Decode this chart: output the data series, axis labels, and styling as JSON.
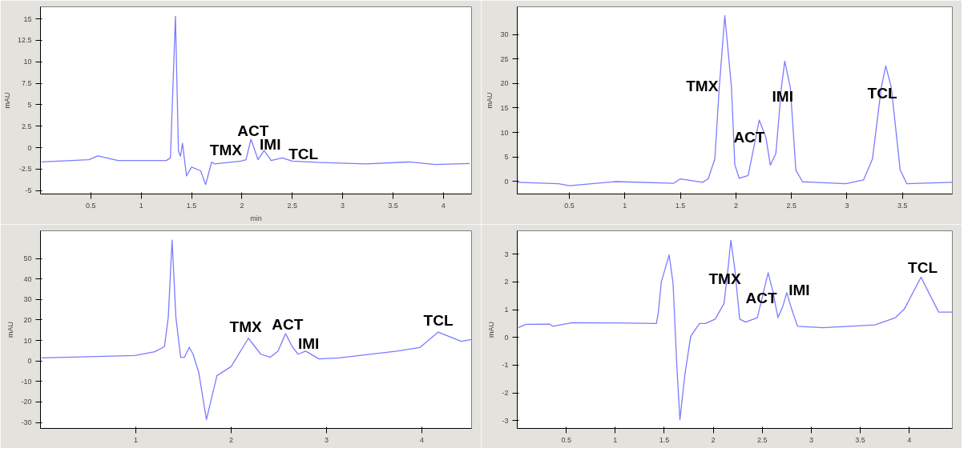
{
  "chart_data": [
    {
      "type": "line",
      "ylabel": "mAU",
      "xlabel": "min",
      "grid": false,
      "xlim": [
        0,
        4.28
      ],
      "ylim": [
        -5.4,
        16.4
      ],
      "xticks": [
        0.5,
        1,
        1.5,
        2,
        2.5,
        3,
        3.5,
        4
      ],
      "yticks": [
        -5,
        -2.5,
        0,
        2.5,
        5,
        7.5,
        10,
        12.5,
        15
      ],
      "series": [
        {
          "color": "#7b7bff",
          "x": [
            0.01,
            0.48,
            0.57,
            0.77,
            1.25,
            1.29,
            1.34,
            1.37,
            1.39,
            1.41,
            1.45,
            1.5,
            1.59,
            1.64,
            1.7,
            1.73,
            1.99,
            2.04,
            2.09,
            2.16,
            2.22,
            2.29,
            2.4,
            2.5,
            2.78,
            3.23,
            3.66,
            3.92,
            4.26
          ],
          "values": [
            -1.67,
            -1.4,
            -0.97,
            -1.5,
            -1.5,
            -1.2,
            15.3,
            -0.4,
            -1.0,
            0.5,
            -3.3,
            -2.27,
            -2.7,
            -4.3,
            -1.67,
            -1.9,
            -1.57,
            -1.4,
            0.96,
            -1.4,
            -0.34,
            -1.5,
            -1.2,
            -1.57,
            -1.74,
            -1.9,
            -1.67,
            -1.97,
            -1.85
          ]
        }
      ],
      "annotations": [
        "TMX",
        "ACT",
        "IMI",
        "TCL"
      ]
    },
    {
      "type": "line",
      "ylabel": "mAU",
      "grid": false,
      "xlim": [
        0.03,
        3.95
      ],
      "ylim": [
        -2.6,
        35.7
      ],
      "xticks": [
        0.5,
        1,
        1.5,
        2,
        2.5,
        3,
        3.5
      ],
      "yticks": [
        0,
        5,
        10,
        15,
        20,
        25,
        30
      ],
      "series": [
        {
          "color": "#7b7bff",
          "x": [
            0.03,
            0.4,
            0.5,
            0.92,
            1.44,
            1.5,
            1.7,
            1.75,
            1.81,
            1.85,
            1.9,
            1.96,
            1.99,
            2.03,
            2.11,
            2.16,
            2.21,
            2.27,
            2.31,
            2.36,
            2.41,
            2.44,
            2.49,
            2.54,
            2.6,
            2.99,
            3.15,
            3.23,
            3.31,
            3.35,
            3.4,
            3.48,
            3.54,
            3.95
          ],
          "values": [
            -0.22,
            -0.5,
            -0.9,
            -0.06,
            -0.4,
            0.5,
            -0.2,
            0.5,
            4.55,
            19.2,
            33.9,
            19.2,
            3.4,
            0.6,
            1.2,
            6.8,
            12.5,
            9.0,
            3.3,
            5.7,
            19.2,
            24.6,
            19.2,
            2.3,
            -0.1,
            -0.5,
            0.3,
            4.55,
            19.2,
            23.6,
            19.2,
            2.3,
            -0.5,
            -0.2
          ]
        }
      ],
      "annotations": [
        "TMX",
        "ACT",
        "IMI",
        "TCL"
      ]
    },
    {
      "type": "line",
      "ylabel": "mAU",
      "grid": false,
      "xlim": [
        0,
        4.52
      ],
      "ylim": [
        -32.9,
        63.5
      ],
      "xticks": [
        1,
        2,
        3,
        4
      ],
      "yticks": [
        -30,
        -20,
        -10,
        0,
        10,
        20,
        30,
        40,
        50
      ],
      "series": [
        {
          "color": "#7b7bff",
          "x": [
            0.01,
            0.99,
            1.2,
            1.3,
            1.34,
            1.38,
            1.42,
            1.47,
            1.51,
            1.56,
            1.6,
            1.66,
            1.74,
            1.85,
            2.0,
            2.18,
            2.31,
            2.41,
            2.49,
            2.57,
            2.64,
            2.7,
            2.78,
            2.92,
            3.13,
            3.74,
            3.98,
            4.17,
            4.41,
            4.52
          ],
          "values": [
            1.5,
            2.7,
            4.5,
            7.0,
            21.3,
            59,
            21.3,
            1.8,
            1.8,
            6.7,
            3.3,
            -5.7,
            -28.6,
            -7.2,
            -2.7,
            11.1,
            3.3,
            1.8,
            4.8,
            13.3,
            7.0,
            3.3,
            4.8,
            1.0,
            1.5,
            4.8,
            6.6,
            14.1,
            9.6,
            10.5
          ]
        }
      ],
      "annotations": [
        "TMX",
        "ACT",
        "IMI",
        "TCL"
      ]
    },
    {
      "type": "line",
      "ylabel": "mAU",
      "grid": false,
      "xlim": [
        0,
        4.44
      ],
      "ylim": [
        -3.28,
        3.84
      ],
      "xticks": [
        0.5,
        1,
        1.5,
        2,
        2.5,
        3,
        3.5,
        4
      ],
      "yticks": [
        -3,
        -2,
        -1,
        0,
        1,
        2,
        3
      ],
      "series": [
        {
          "color": "#7b7bff",
          "x": [
            0.01,
            0.09,
            0.33,
            0.36,
            0.56,
            1.0,
            1.42,
            1.44,
            1.47,
            1.55,
            1.59,
            1.63,
            1.66,
            1.71,
            1.77,
            1.86,
            1.92,
            2.02,
            2.11,
            2.15,
            2.18,
            2.22,
            2.27,
            2.33,
            2.45,
            2.52,
            2.56,
            2.61,
            2.66,
            2.71,
            2.75,
            2.8,
            2.86,
            3.12,
            3.65,
            3.86,
            3.95,
            4.12,
            4.3,
            4.44
          ],
          "values": [
            0.35,
            0.47,
            0.48,
            0.4,
            0.53,
            0.52,
            0.5,
            0.91,
            2.0,
            2.97,
            1.94,
            -1.14,
            -2.97,
            -1.35,
            0.04,
            0.5,
            0.5,
            0.66,
            1.22,
            2.46,
            3.5,
            2.46,
            0.66,
            0.55,
            0.71,
            1.74,
            2.33,
            1.63,
            0.71,
            1.12,
            1.61,
            1.02,
            0.4,
            0.35,
            0.45,
            0.71,
            1.02,
            2.17,
            0.91,
            0.91
          ]
        }
      ],
      "annotations": [
        "TMX",
        "ACT",
        "IMI",
        "TCL"
      ]
    }
  ]
}
